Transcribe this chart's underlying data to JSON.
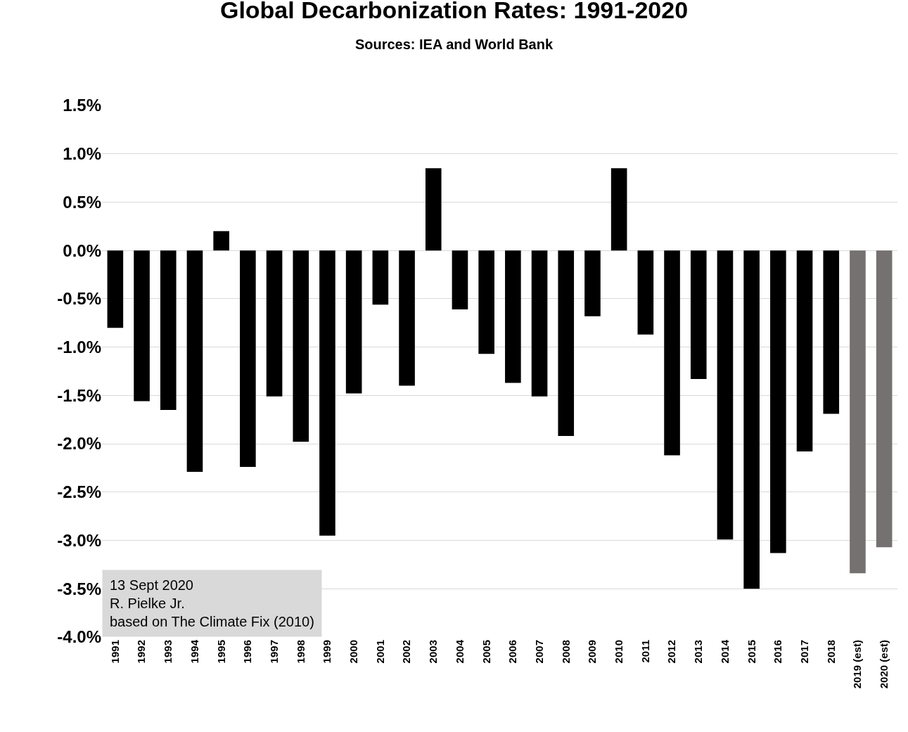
{
  "chart_data": {
    "type": "bar",
    "title": "Global Decarbonization Rates: 1991-2020",
    "subtitle": "Sources: IEA and World Bank",
    "categories": [
      "1991",
      "1992",
      "1993",
      "1994",
      "1995",
      "1996",
      "1997",
      "1998",
      "1999",
      "2000",
      "2001",
      "2002",
      "2003",
      "2004",
      "2005",
      "2006",
      "2007",
      "2008",
      "2009",
      "2010",
      "2011",
      "2012",
      "2013",
      "2014",
      "2015",
      "2016",
      "2017",
      "2018",
      "2019 (est)",
      "2020 (est)"
    ],
    "values": [
      -0.8,
      -1.56,
      -1.65,
      -2.29,
      0.2,
      -2.24,
      -1.51,
      -1.98,
      -2.95,
      -1.48,
      -0.56,
      -1.4,
      0.85,
      -0.61,
      -1.07,
      -1.37,
      -1.51,
      -1.92,
      -0.68,
      0.85,
      -0.87,
      -2.12,
      -1.33,
      -2.99,
      -3.5,
      -3.13,
      -2.08,
      -1.69,
      -3.34,
      -3.07
    ],
    "colors": [
      "#000000",
      "#000000",
      "#000000",
      "#000000",
      "#000000",
      "#000000",
      "#000000",
      "#000000",
      "#000000",
      "#000000",
      "#000000",
      "#000000",
      "#000000",
      "#000000",
      "#000000",
      "#000000",
      "#000000",
      "#000000",
      "#000000",
      "#000000",
      "#000000",
      "#000000",
      "#000000",
      "#000000",
      "#000000",
      "#000000",
      "#000000",
      "#000000",
      "#767171",
      "#767171"
    ],
    "ylim": [
      -4.0,
      1.5
    ],
    "yticks": [
      {
        "value": 1.5,
        "label": "1.5%"
      },
      {
        "value": 1.0,
        "label": "1.0%"
      },
      {
        "value": 0.5,
        "label": "0.5%"
      },
      {
        "value": 0.0,
        "label": "0.0%"
      },
      {
        "value": -0.5,
        "label": "-0.5%"
      },
      {
        "value": -1.0,
        "label": "-1.0%"
      },
      {
        "value": -1.5,
        "label": "-1.5%"
      },
      {
        "value": -2.0,
        "label": "-2.0%"
      },
      {
        "value": -2.5,
        "label": "-2.5%"
      },
      {
        "value": -3.0,
        "label": "-3.0%"
      },
      {
        "value": -3.5,
        "label": "-3.5%"
      },
      {
        "value": -4.0,
        "label": "-4.0%"
      }
    ],
    "grid": "y",
    "annotations": [
      "13 Sept 2020\nR. Pielke Jr.\nbased on The Climate Fix (2010)"
    ]
  }
}
